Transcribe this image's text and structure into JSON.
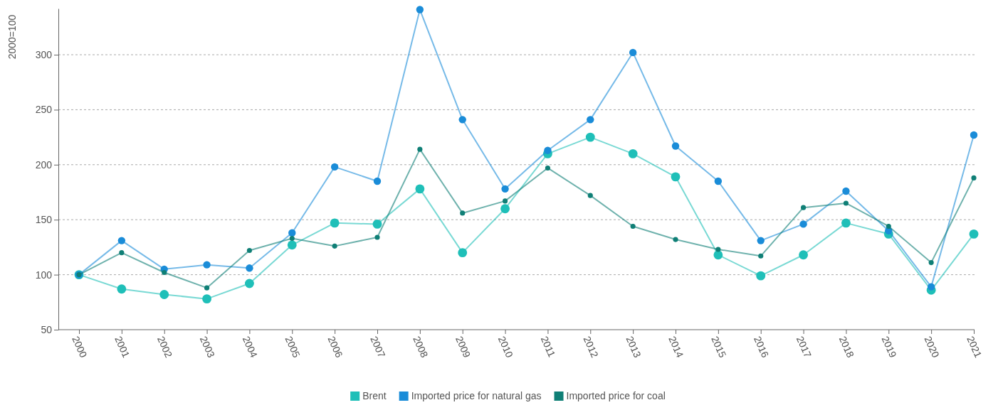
{
  "chart_data": {
    "type": "line",
    "ylabel": "2000=100",
    "categories": [
      "2000",
      "2001",
      "2002",
      "2003",
      "2004",
      "2005",
      "2006",
      "2007",
      "2008",
      "2009",
      "2010",
      "2011",
      "2012",
      "2013",
      "2014",
      "2015",
      "2016",
      "2017",
      "2018",
      "2019",
      "2020",
      "2021"
    ],
    "series": [
      {
        "name": "Brent",
        "color": "#1fbfb8",
        "values": [
          100,
          87,
          82,
          78,
          92,
          127,
          147,
          146,
          178,
          120,
          160,
          210,
          225,
          210,
          189,
          118,
          99,
          118,
          147,
          137,
          86,
          137
        ]
      },
      {
        "name": "Imported price for natural gas",
        "color": "#1a8cd8",
        "values": [
          100,
          131,
          105,
          109,
          106,
          138,
          198,
          185,
          341,
          241,
          178,
          213,
          241,
          302,
          217,
          185,
          131,
          146,
          176,
          140,
          89,
          227
        ]
      },
      {
        "name": "Imported price for coal",
        "color": "#0f7f76",
        "values": [
          100,
          120,
          102,
          88,
          122,
          133,
          126,
          134,
          214,
          156,
          167,
          197,
          172,
          144,
          132,
          123,
          117,
          161,
          165,
          144,
          111,
          188
        ]
      }
    ],
    "ylim": [
      50,
      342
    ],
    "yticks": [
      50,
      100,
      150,
      200,
      250,
      300
    ],
    "grid": "y",
    "legend": "bottom",
    "marker": "circle",
    "line_style": "solid"
  }
}
